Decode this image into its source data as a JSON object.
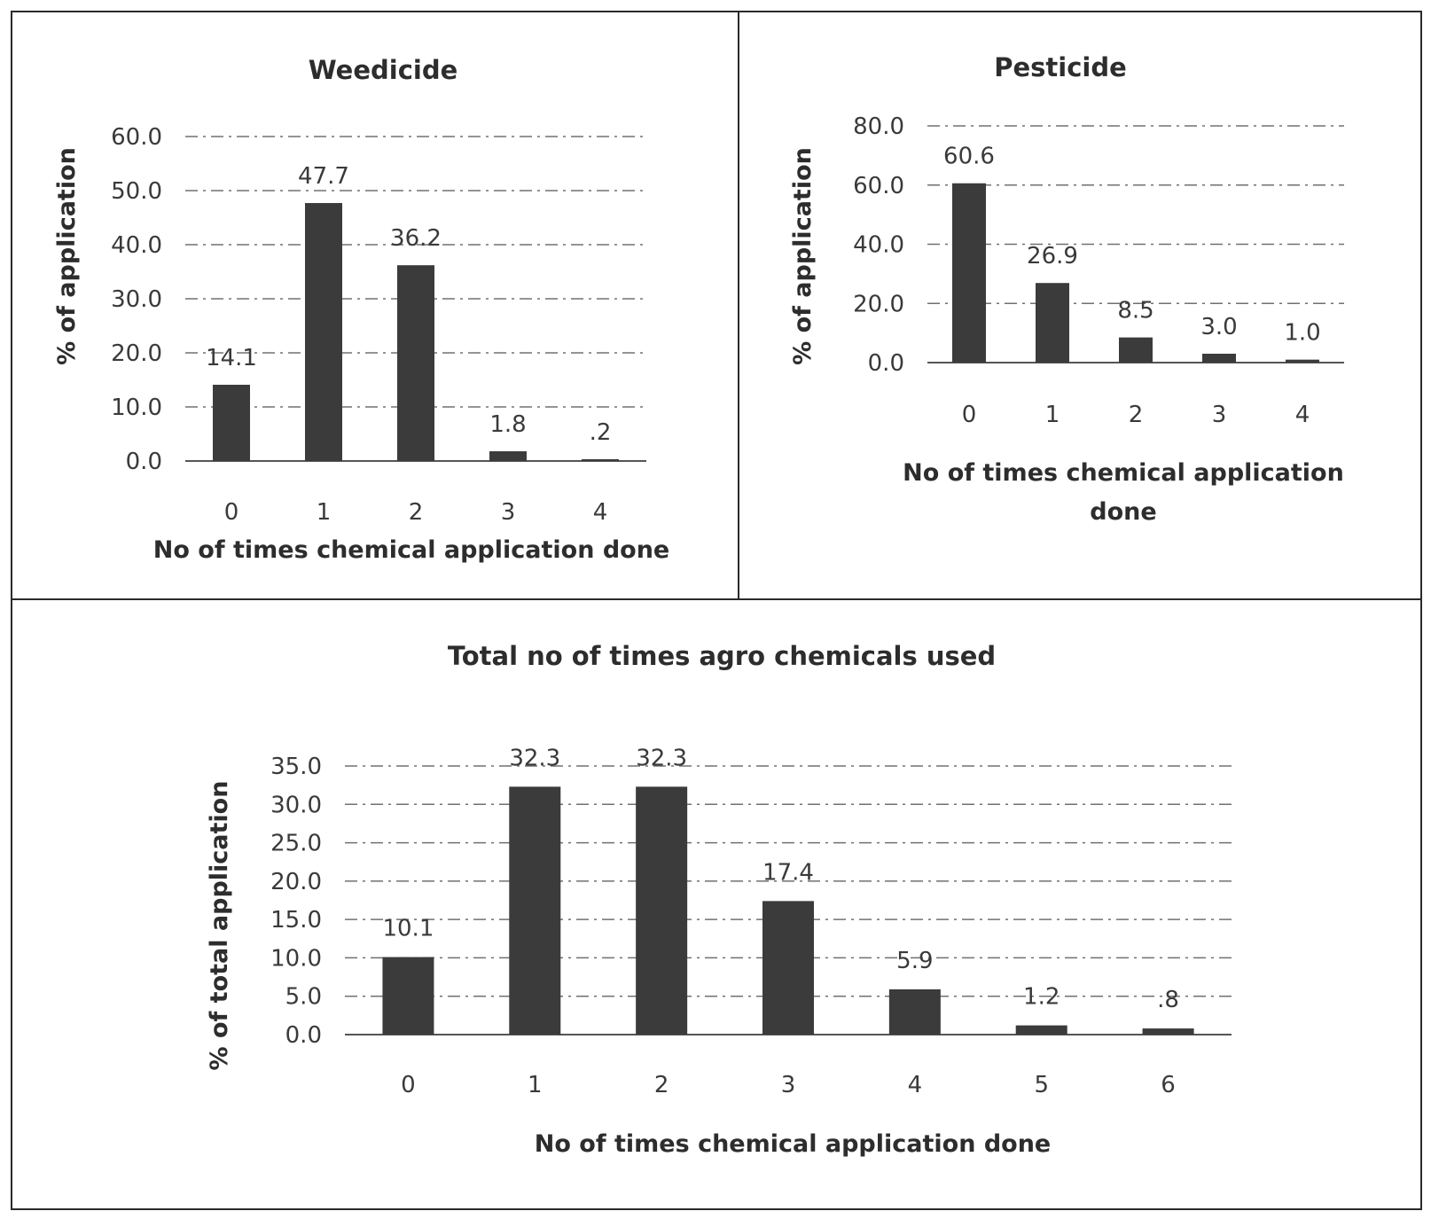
{
  "chart_data": [
    {
      "type": "bar",
      "title": "Weedicide",
      "xlabel": "No of times chemical application done",
      "ylabel": "% of application",
      "categories": [
        "0",
        "1",
        "2",
        "3",
        "4"
      ],
      "values": [
        14.1,
        47.7,
        36.2,
        1.8,
        0.2
      ],
      "data_labels": [
        "14.1",
        "47.7",
        "36.2",
        "1.8",
        ".2"
      ],
      "yticks": [
        "0.0",
        "10.0",
        "20.0",
        "30.0",
        "40.0",
        "50.0",
        "60.0"
      ],
      "ylim": [
        0,
        60
      ],
      "grid": true,
      "bar_color": "#3b3b3b"
    },
    {
      "type": "bar",
      "title": "Pesticide",
      "xlabel": "No of times chemical application done",
      "ylabel": "% of application",
      "categories": [
        "0",
        "1",
        "2",
        "3",
        "4"
      ],
      "values": [
        60.6,
        26.9,
        8.5,
        3.0,
        1.0
      ],
      "data_labels": [
        "60.6",
        "26.9",
        "8.5",
        "3.0",
        "1.0"
      ],
      "yticks": [
        "0.0",
        "20.0",
        "40.0",
        "60.0",
        "80.0"
      ],
      "ylim": [
        0,
        80
      ],
      "grid": true,
      "bar_color": "#3b3b3b"
    },
    {
      "type": "bar",
      "title": "Total no of times agro chemicals used",
      "xlabel": "No of times chemical application done",
      "ylabel": "% of total application",
      "categories": [
        "0",
        "1",
        "2",
        "3",
        "4",
        "5",
        "6"
      ],
      "values": [
        10.1,
        32.3,
        32.3,
        17.4,
        5.9,
        1.2,
        0.8
      ],
      "data_labels": [
        "10.1",
        "32.3",
        "32.3",
        "17.4",
        "5.9",
        "1.2",
        ".8"
      ],
      "yticks": [
        "0.0",
        "5.0",
        "10.0",
        "15.0",
        "20.0",
        "25.0",
        "30.0",
        "35.0"
      ],
      "ylim": [
        0,
        35
      ],
      "grid": true,
      "bar_color": "#3b3b3b"
    }
  ]
}
